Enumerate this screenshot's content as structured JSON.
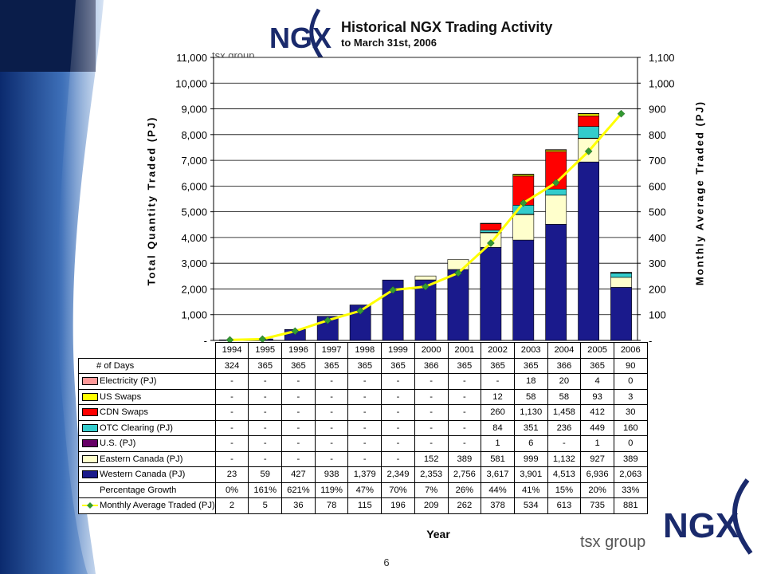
{
  "slide": {
    "title": "Historical NGX Trading Activity",
    "subtitle": "to March 31st, 2006",
    "page_number": "6",
    "logo_text": "NGX",
    "logo_tagline": "tsx group"
  },
  "colors": {
    "western_canada": "#1a1a8c",
    "eastern_canada": "#ffffcc",
    "us_pj": "#660066",
    "otc_clearing": "#33cccc",
    "cdn_swaps": "#ff0000",
    "us_swaps": "#ffff00",
    "electricity": "#ff9999",
    "monthly_line": "#ffff00",
    "monthly_marker": "#339933"
  },
  "chart_data": {
    "type": "bar",
    "stacked": true,
    "categories": [
      "1994",
      "1995",
      "1996",
      "1997",
      "1998",
      "1999",
      "2000",
      "2001",
      "2002",
      "2003",
      "2004",
      "2005",
      "2006"
    ],
    "left_ylabel": "Total Quantity Traded (PJ)",
    "right_ylabel": "Monthly Average Traded (PJ)",
    "xlabel": "Year",
    "ylim_left": [
      0,
      11000
    ],
    "ylim_right": [
      0,
      1100
    ],
    "left_ticks": [
      "-",
      "1,000",
      "2,000",
      "3,000",
      "4,000",
      "5,000",
      "6,000",
      "7,000",
      "8,000",
      "9,000",
      "10,000",
      "11,000"
    ],
    "right_ticks": [
      "-",
      "100",
      "200",
      "300",
      "400",
      "500",
      "600",
      "700",
      "800",
      "900",
      "1,000",
      "1,100"
    ],
    "series": [
      {
        "key": "western_canada",
        "name": "Western Canada (PJ)",
        "values": [
          23,
          59,
          427,
          938,
          1379,
          2349,
          2353,
          2756,
          3617,
          3901,
          4513,
          6936,
          2063
        ]
      },
      {
        "key": "eastern_canada",
        "name": "Eastern Canada (PJ)",
        "values": [
          0,
          0,
          0,
          0,
          0,
          0,
          152,
          389,
          581,
          999,
          1132,
          927,
          389
        ]
      },
      {
        "key": "us_pj",
        "name": "U.S. (PJ)",
        "values": [
          0,
          0,
          0,
          0,
          0,
          0,
          0,
          0,
          1,
          6,
          0,
          1,
          0
        ]
      },
      {
        "key": "otc_clearing",
        "name": "OTC Clearing (PJ)",
        "values": [
          0,
          0,
          0,
          0,
          0,
          0,
          0,
          0,
          84,
          351,
          236,
          449,
          160
        ]
      },
      {
        "key": "cdn_swaps",
        "name": "CDN Swaps",
        "values": [
          0,
          0,
          0,
          0,
          0,
          0,
          0,
          0,
          260,
          1130,
          1458,
          412,
          30
        ]
      },
      {
        "key": "us_swaps",
        "name": "US Swaps",
        "values": [
          0,
          0,
          0,
          0,
          0,
          0,
          0,
          0,
          12,
          58,
          58,
          93,
          3
        ]
      },
      {
        "key": "electricity",
        "name": "Electricity (PJ)",
        "values": [
          0,
          0,
          0,
          0,
          0,
          0,
          0,
          0,
          0,
          18,
          20,
          4,
          0
        ]
      }
    ],
    "line_series": {
      "name": "Monthly Average Traded (PJ)",
      "axis": "right",
      "values": [
        2,
        5,
        36,
        78,
        115,
        196,
        209,
        262,
        378,
        534,
        613,
        735,
        881
      ]
    },
    "table": {
      "years": [
        "1994",
        "1995",
        "1996",
        "1997",
        "1998",
        "1999",
        "2000",
        "2001",
        "2002",
        "2003",
        "2004",
        "2005",
        "2006"
      ],
      "rows": [
        {
          "key": "days",
          "label": "# of Days",
          "cells": [
            "324",
            "365",
            "365",
            "365",
            "365",
            "365",
            "366",
            "365",
            "365",
            "365",
            "366",
            "365",
            "90"
          ]
        },
        {
          "key": "electricity",
          "label": "Electricity (PJ)",
          "cells": [
            "-",
            "-",
            "-",
            "-",
            "-",
            "-",
            "-",
            "-",
            "-",
            "18",
            "20",
            "4",
            "0"
          ]
        },
        {
          "key": "us_swaps",
          "label": "US Swaps",
          "cells": [
            "-",
            "-",
            "-",
            "-",
            "-",
            "-",
            "-",
            "-",
            "12",
            "58",
            "58",
            "93",
            "3"
          ]
        },
        {
          "key": "cdn_swaps",
          "label": "CDN Swaps",
          "cells": [
            "-",
            "-",
            "-",
            "-",
            "-",
            "-",
            "-",
            "-",
            "260",
            "1,130",
            "1,458",
            "412",
            "30"
          ]
        },
        {
          "key": "otc_clearing",
          "label": "OTC Clearing (PJ)",
          "cells": [
            "-",
            "-",
            "-",
            "-",
            "-",
            "-",
            "-",
            "-",
            "84",
            "351",
            "236",
            "449",
            "160"
          ]
        },
        {
          "key": "us_pj",
          "label": "U.S. (PJ)",
          "cells": [
            "-",
            "-",
            "-",
            "-",
            "-",
            "-",
            "-",
            "-",
            "1",
            "6",
            "-",
            "1",
            "0"
          ]
        },
        {
          "key": "eastern_canada",
          "label": "Eastern Canada (PJ)",
          "cells": [
            "-",
            "-",
            "-",
            "-",
            "-",
            "-",
            "152",
            "389",
            "581",
            "999",
            "1,132",
            "927",
            "389"
          ]
        },
        {
          "key": "western_canada",
          "label": "Western Canada (PJ)",
          "cells": [
            "23",
            "59",
            "427",
            "938",
            "1,379",
            "2,349",
            "2,353",
            "2,756",
            "3,617",
            "3,901",
            "4,513",
            "6,936",
            "2,063"
          ]
        },
        {
          "key": "growth",
          "label": "Percentage Growth",
          "cells": [
            "0%",
            "161%",
            "621%",
            "119%",
            "47%",
            "70%",
            "7%",
            "26%",
            "44%",
            "41%",
            "15%",
            "20%",
            "33%"
          ]
        },
        {
          "key": "monthly",
          "label": "Monthly Average Traded (PJ)",
          "cells": [
            "2",
            "5",
            "36",
            "78",
            "115",
            "196",
            "209",
            "262",
            "378",
            "534",
            "613",
            "735",
            "881"
          ]
        }
      ]
    }
  }
}
